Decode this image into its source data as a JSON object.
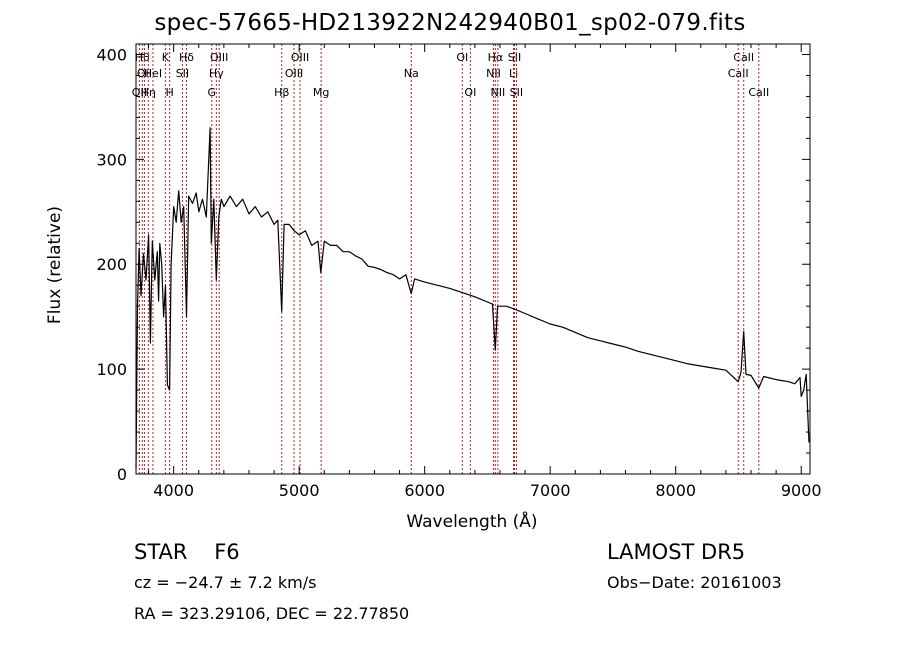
{
  "chart_data": {
    "type": "line",
    "title": "spec-57665-HD213922N242940B01_sp02-079.fits",
    "xlabel": "Wavelength (Å)",
    "ylabel": "Flux (relative)",
    "xlim": [
      3700,
      9070
    ],
    "ylim": [
      0,
      410
    ],
    "xticks": [
      4000,
      5000,
      6000,
      7000,
      8000,
      9000
    ],
    "yticks": [
      0,
      100,
      200,
      300,
      400
    ],
    "grid": false,
    "line_color": "#000000",
    "marker_color": "#b22222",
    "series": [
      {
        "points": [
          [
            3700,
            5
          ],
          [
            3712,
            160
          ],
          [
            3725,
            215
          ],
          [
            3740,
            170
          ],
          [
            3760,
            210
          ],
          [
            3780,
            185
          ],
          [
            3800,
            228
          ],
          [
            3815,
            125
          ],
          [
            3830,
            222
          ],
          [
            3850,
            185
          ],
          [
            3870,
            212
          ],
          [
            3880,
            165
          ],
          [
            3890,
            220
          ],
          [
            3905,
            200
          ],
          [
            3920,
            150
          ],
          [
            3935,
            180
          ],
          [
            3950,
            85
          ],
          [
            3968,
            80
          ],
          [
            3980,
            200
          ],
          [
            4000,
            255
          ],
          [
            4020,
            240
          ],
          [
            4040,
            270
          ],
          [
            4060,
            240
          ],
          [
            4080,
            255
          ],
          [
            4102,
            150
          ],
          [
            4120,
            265
          ],
          [
            4150,
            258
          ],
          [
            4180,
            268
          ],
          [
            4200,
            250
          ],
          [
            4230,
            262
          ],
          [
            4260,
            245
          ],
          [
            4290,
            330
          ],
          [
            4300,
            220
          ],
          [
            4320,
            262
          ],
          [
            4340,
            185
          ],
          [
            4360,
            245
          ],
          [
            4380,
            262
          ],
          [
            4400,
            255
          ],
          [
            4450,
            265
          ],
          [
            4500,
            255
          ],
          [
            4550,
            262
          ],
          [
            4600,
            248
          ],
          [
            4650,
            255
          ],
          [
            4700,
            245
          ],
          [
            4750,
            250
          ],
          [
            4800,
            238
          ],
          [
            4830,
            242
          ],
          [
            4861,
            155
          ],
          [
            4880,
            238
          ],
          [
            4920,
            238
          ],
          [
            4960,
            232
          ],
          [
            5000,
            228
          ],
          [
            5050,
            232
          ],
          [
            5100,
            218
          ],
          [
            5150,
            222
          ],
          [
            5172,
            192
          ],
          [
            5200,
            222
          ],
          [
            5250,
            218
          ],
          [
            5300,
            218
          ],
          [
            5350,
            212
          ],
          [
            5400,
            212
          ],
          [
            5450,
            208
          ],
          [
            5500,
            205
          ],
          [
            5550,
            198
          ],
          [
            5600,
            197
          ],
          [
            5650,
            195
          ],
          [
            5700,
            192
          ],
          [
            5750,
            190
          ],
          [
            5800,
            186
          ],
          [
            5850,
            190
          ],
          [
            5893,
            172
          ],
          [
            5920,
            186
          ],
          [
            6000,
            183
          ],
          [
            6100,
            180
          ],
          [
            6200,
            177
          ],
          [
            6300,
            173
          ],
          [
            6400,
            169
          ],
          [
            6500,
            164
          ],
          [
            6540,
            162
          ],
          [
            6563,
            118
          ],
          [
            6580,
            160
          ],
          [
            6650,
            160
          ],
          [
            6700,
            158
          ],
          [
            6800,
            153
          ],
          [
            6900,
            148
          ],
          [
            7000,
            143
          ],
          [
            7100,
            140
          ],
          [
            7200,
            135
          ],
          [
            7300,
            130
          ],
          [
            7400,
            127
          ],
          [
            7500,
            124
          ],
          [
            7600,
            121
          ],
          [
            7700,
            117
          ],
          [
            7800,
            114
          ],
          [
            7900,
            111
          ],
          [
            8000,
            108
          ],
          [
            8100,
            105
          ],
          [
            8200,
            103
          ],
          [
            8300,
            101
          ],
          [
            8400,
            99
          ],
          [
            8498,
            88
          ],
          [
            8520,
            97
          ],
          [
            8542,
            136
          ],
          [
            8560,
            95
          ],
          [
            8600,
            94
          ],
          [
            8662,
            82
          ],
          [
            8700,
            93
          ],
          [
            8800,
            90
          ],
          [
            8900,
            88
          ],
          [
            8950,
            86
          ],
          [
            8990,
            92
          ],
          [
            9000,
            74
          ],
          [
            9020,
            80
          ],
          [
            9040,
            95
          ],
          [
            9055,
            50
          ],
          [
            9062,
            30
          ]
        ]
      }
    ],
    "line_markers": [
      {
        "x": 3727,
        "row": 3,
        "label": "OII"
      },
      {
        "x": 3750,
        "row": 1,
        "label": "Hθ"
      },
      {
        "x": 3767,
        "row": 2,
        "label": "OII"
      },
      {
        "x": 3798,
        "row": 3,
        "label": "Hη"
      },
      {
        "x": 3835,
        "row": 2,
        "label": "HeI"
      },
      {
        "x": 3934,
        "row": 1,
        "label": "K"
      },
      {
        "x": 3968,
        "row": 3,
        "label": "H"
      },
      {
        "x": 4070,
        "row": 2,
        "label": "SII"
      },
      {
        "x": 4102,
        "row": 1,
        "label": "Hδ"
      },
      {
        "x": 4304,
        "row": 3,
        "label": "G"
      },
      {
        "x": 4340,
        "row": 2,
        "label": "Hγ"
      },
      {
        "x": 4363,
        "row": 1,
        "label": "OIII"
      },
      {
        "x": 4861,
        "row": 3,
        "label": "Hβ"
      },
      {
        "x": 4959,
        "row": 2,
        "label": "OIII"
      },
      {
        "x": 5007,
        "row": 1,
        "label": "OIII"
      },
      {
        "x": 5175,
        "row": 3,
        "label": "Mg"
      },
      {
        "x": 5893,
        "row": 2,
        "label": "Na"
      },
      {
        "x": 6300,
        "row": 1,
        "label": "OI"
      },
      {
        "x": 6364,
        "row": 3,
        "label": "OI"
      },
      {
        "x": 6548,
        "row": 2,
        "label": "NII"
      },
      {
        "x": 6563,
        "row": 1,
        "label": "Hα"
      },
      {
        "x": 6583,
        "row": 3,
        "label": "NII"
      },
      {
        "x": 6708,
        "row": 2,
        "label": "Li"
      },
      {
        "x": 6716,
        "row": 1,
        "label": "SII"
      },
      {
        "x": 6731,
        "row": 3,
        "label": "SII"
      },
      {
        "x": 8498,
        "row": 2,
        "label": "CaII"
      },
      {
        "x": 8542,
        "row": 1,
        "label": "CaII"
      },
      {
        "x": 8662,
        "row": 3,
        "label": "CaII"
      }
    ]
  },
  "info": {
    "object_class": "STAR",
    "subclass": "F6",
    "survey": "LAMOST DR5",
    "cz": "cz = −24.7 ± 7.2 km/s",
    "obs_date": "Obs−Date: 20161003",
    "radec": "RA = 323.29106, DEC =  22.77850"
  }
}
